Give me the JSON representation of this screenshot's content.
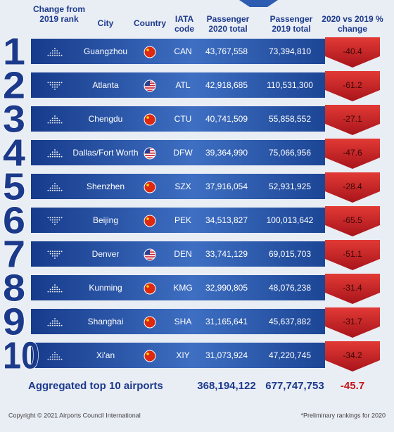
{
  "header": {
    "columns": [
      "Change from 2019 rank",
      "City",
      "Country",
      "IATA code",
      "Passenger 2020 total",
      "Passenger 2019 total",
      "2020 vs 2019 % change"
    ]
  },
  "rows": [
    {
      "rank": 1,
      "city": "Guangzhou",
      "iata": "CAN",
      "passengers_2020": "43,767,558",
      "passengers_2019": "73,394,810",
      "change": -40.4
    },
    {
      "rank": 2,
      "city": "Atlanta",
      "iata": "ATL",
      "passengers_2020": "42,918,685",
      "passengers_2019": "110,531,300",
      "change": -61.2
    },
    {
      "rank": 3,
      "city": "Chengdu",
      "iata": "CTU",
      "passengers_2020": "40,741,509",
      "passengers_2019": "55,858,552",
      "change": -27.1
    },
    {
      "rank": 4,
      "city": "Dallas/Fort Worth",
      "iata": "DFW",
      "passengers_2020": "39,364,990",
      "passengers_2019": "75,066,956",
      "change": -47.6
    },
    {
      "rank": 5,
      "city": "Shenzhen",
      "iata": "SZX",
      "passengers_2020": "37,916,054",
      "passengers_2019": "52,931,925",
      "change": -28.4
    },
    {
      "rank": 6,
      "city": "Beijing",
      "iata": "PEK",
      "passengers_2020": "34,513,827",
      "passengers_2019": "100,013,642",
      "change": -65.5
    },
    {
      "rank": 7,
      "city": "Denver",
      "iata": "DEN",
      "passengers_2020": "33,741,129",
      "passengers_2019": "69,015,703",
      "change": -51.1
    },
    {
      "rank": 8,
      "city": "Kunming",
      "iata": "KMG",
      "passengers_2020": "32,990,805",
      "passengers_2019": "48,076,238",
      "change": -31.4
    },
    {
      "rank": 9,
      "city": "Shanghai",
      "iata": "SHA",
      "passengers_2020": "31,165,641",
      "passengers_2019": "45,637,882",
      "change": -31.7
    },
    {
      "rank": 10,
      "city": "Xi'an",
      "iata": "XIY",
      "passengers_2020": "31,073,924",
      "passengers_2019": "47,220,745",
      "change": -34.2
    }
  ],
  "total": {
    "label": "Aggregated top 10 airports",
    "passengers_2020": "368,194,122",
    "passengers_2019": "677,747,753",
    "change": -45.7
  },
  "footer": {
    "copyright": "Copyright © 2021 Airports Council International",
    "note": "*Preliminary rankings for 2020"
  }
}
